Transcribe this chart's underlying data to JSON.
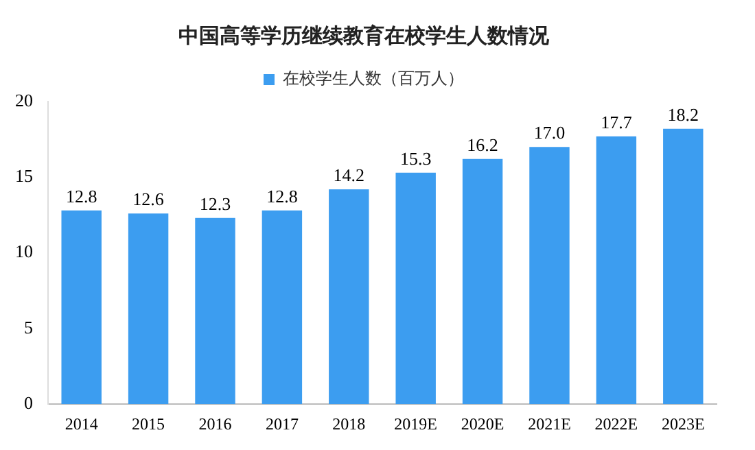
{
  "chart_data": {
    "type": "bar",
    "title": "中国高等学历继续教育在校学生人数情况",
    "categories": [
      "2014",
      "2015",
      "2016",
      "2017",
      "2018",
      "2019E",
      "2020E",
      "2021E",
      "2022E",
      "2023E"
    ],
    "series": [
      {
        "name": "在校学生人数（百万人）",
        "color": "#3c9df0",
        "values": [
          12.8,
          12.6,
          12.3,
          12.8,
          14.2,
          15.3,
          16.2,
          17.0,
          17.7,
          18.2
        ],
        "value_labels": [
          "12.8",
          "12.6",
          "12.3",
          "12.8",
          "14.2",
          "15.3",
          "16.2",
          "17.0",
          "17.7",
          "18.2"
        ]
      }
    ],
    "ylim": [
      0,
      20
    ],
    "yticks": [
      0,
      5,
      10,
      15,
      20
    ],
    "grid": false,
    "legend": "top"
  }
}
